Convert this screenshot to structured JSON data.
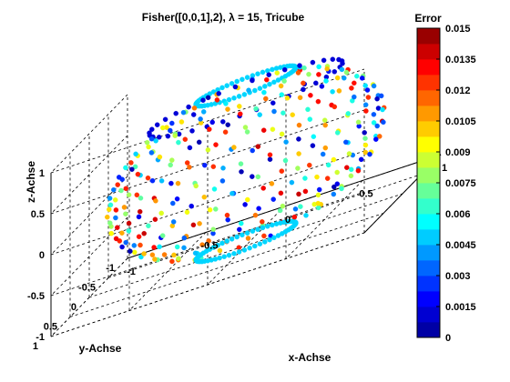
{
  "chart_data": {
    "type": "scatter",
    "title": "Fisher([0,0,1],2), λ = 15, Tricube",
    "xlabel": "x-Achse",
    "ylabel": "y-Achse",
    "zlabel": "z-Achse",
    "xlim": [
      -1,
      1
    ],
    "ylim": [
      -1,
      1
    ],
    "zlim": [
      -1,
      1
    ],
    "x_ticks": [
      "-1",
      "-0.5",
      "0",
      "0.5",
      "1"
    ],
    "y_ticks": [
      "-1",
      "-0.5",
      "0",
      "0.5",
      "1"
    ],
    "z_ticks": [
      "-1",
      "-0.5",
      "0",
      "0.5",
      "1"
    ],
    "grid": true,
    "marker": "filled-circle",
    "colormap": "jet",
    "colorbar": {
      "title": "Error",
      "range": [
        0,
        0.015
      ],
      "ticks": [
        "0",
        "0.0015",
        "0.003",
        "0.0045",
        "0.006",
        "0.0075",
        "0.009",
        "0.0105",
        "0.012",
        "0.0135",
        "0.015"
      ],
      "levels": 20,
      "jet_colors": [
        "#00008f",
        "#0000ff",
        "#0080ff",
        "#00ffff",
        "#80ff80",
        "#ffff00",
        "#ff8000",
        "#ff0000",
        "#800000"
      ]
    },
    "series": [
      {
        "description": "sphere surface sample, coloured by error",
        "point_count": 340,
        "rings": [
          {
            "z": 0.95,
            "radius": 0.31,
            "error": 0.005,
            "points": 60
          },
          {
            "z": -0.95,
            "radius": 0.31,
            "error": 0.005,
            "points": 60
          },
          {
            "z": 0.8,
            "radius": 0.6,
            "error": 0.0012,
            "points": 36
          }
        ],
        "error_range": [
          0.0005,
          0.014
        ]
      }
    ]
  }
}
